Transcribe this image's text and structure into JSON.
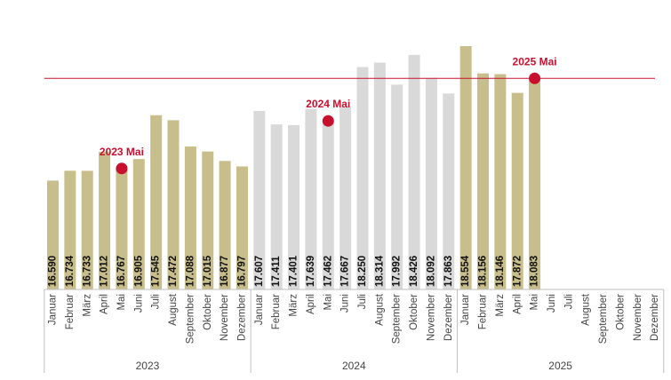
{
  "chart_data": {
    "type": "bar",
    "year_groups": [
      {
        "year": "2023",
        "months": [
          "Januar",
          "Februar",
          "März",
          "April",
          "Mai",
          "Juni",
          "Juli",
          "August",
          "September",
          "Oktober",
          "November",
          "Dezember"
        ],
        "values": [
          16590,
          16734,
          16733,
          17012,
          16767,
          16905,
          17545,
          17472,
          17088,
          17015,
          16877,
          16797
        ],
        "labels": [
          "16.590",
          "16.734",
          "16.733",
          "17.012",
          "16.767",
          "16.905",
          "17.545",
          "17.472",
          "17.088",
          "17.015",
          "16.877",
          "16.797"
        ],
        "color": "#c8be8c"
      },
      {
        "year": "2024",
        "months": [
          "Januar",
          "Februar",
          "März",
          "April",
          "Mai",
          "Juni",
          "Juli",
          "August",
          "September",
          "Oktober",
          "November",
          "Dezember"
        ],
        "values": [
          17607,
          17411,
          17401,
          17639,
          17462,
          17667,
          18250,
          18314,
          17992,
          18426,
          18092,
          17863
        ],
        "labels": [
          "17.607",
          "17.411",
          "17.401",
          "17.639",
          "17.462",
          "17.667",
          "18.250",
          "18.314",
          "17.992",
          "18.426",
          "18.092",
          "17.863"
        ],
        "color": "#d9d9d9"
      },
      {
        "year": "2025",
        "months": [
          "Januar",
          "Februar",
          "März",
          "April",
          "Mai",
          "Juni",
          "Juli",
          "August",
          "September",
          "Oktober",
          "November",
          "Dezember"
        ],
        "values": [
          18554,
          18156,
          18146,
          17872,
          18083,
          null,
          null,
          null,
          null,
          null,
          null,
          null
        ],
        "labels": [
          "18.554",
          "18.156",
          "18.146",
          "17.872",
          "18.083"
        ],
        "color": "#c8be8c"
      }
    ],
    "annotations": [
      {
        "label": "2023 Mai",
        "year_index": 0,
        "month_index": 4,
        "value": 16767
      },
      {
        "label": "2024 Mai",
        "year_index": 1,
        "month_index": 4,
        "value": 17462
      },
      {
        "label": "2025 Mai",
        "year_index": 2,
        "month_index": 4,
        "value": 18083
      }
    ],
    "reference_line": {
      "value": 18083,
      "color": "#c8102e"
    },
    "accent_color": "#c8102e",
    "ylim": [
      15000,
      18700
    ],
    "grid": false,
    "legend": "none",
    "title": "",
    "xlabel": "",
    "ylabel": ""
  }
}
